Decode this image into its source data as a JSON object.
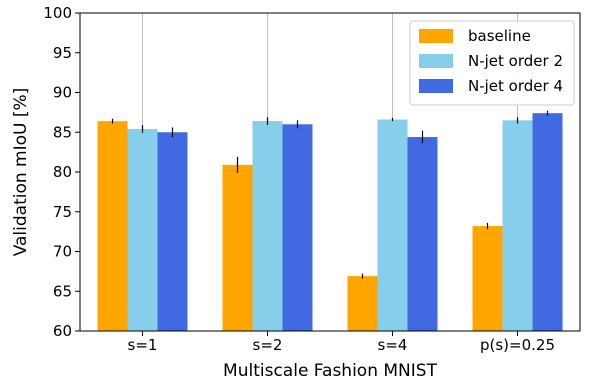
{
  "chart_data": {
    "type": "bar",
    "title": "",
    "xlabel": "Multiscale Fashion MNIST",
    "ylabel": "Validation mIoU [%]",
    "ylim": [
      60,
      100
    ],
    "yticks": [
      60,
      65,
      70,
      75,
      80,
      85,
      90,
      95,
      100
    ],
    "grid": "vertical",
    "legend_position": "top-right",
    "categories": [
      "s=1",
      "s=2",
      "s=4",
      "p(s)=0.25"
    ],
    "series": [
      {
        "name": "baseline",
        "color": "#FFA500",
        "values": [
          86.4,
          80.9,
          66.9,
          73.2
        ],
        "errors": [
          0.3,
          1.0,
          0.3,
          0.4
        ]
      },
      {
        "name": "N-jet order 2",
        "color": "#87CEEB",
        "values": [
          85.4,
          86.4,
          86.6,
          86.5
        ],
        "errors": [
          0.5,
          0.5,
          0.2,
          0.4
        ]
      },
      {
        "name": "N-jet order 4",
        "color": "#4169E1",
        "values": [
          85.0,
          86.0,
          84.4,
          87.4
        ],
        "errors": [
          0.6,
          0.5,
          0.8,
          0.3
        ]
      }
    ]
  }
}
